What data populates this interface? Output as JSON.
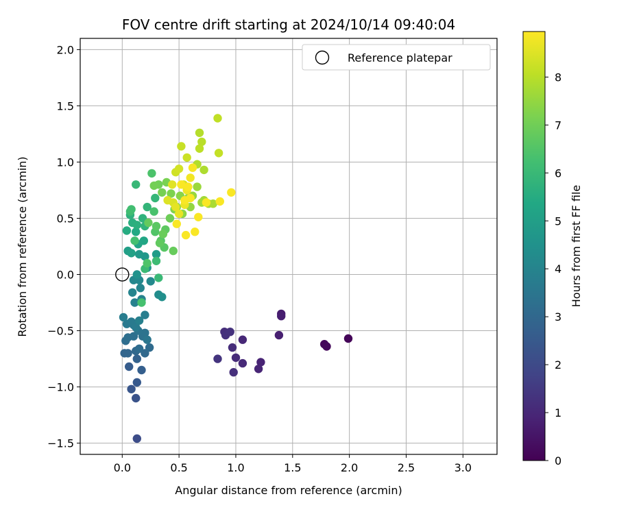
{
  "chart_data": {
    "type": "scatter",
    "title": "FOV centre drift starting at 2024/10/14 09:40:04",
    "xlabel": "Angular distance from reference (arcmin)",
    "ylabel": "Rotation from reference (arcmin)",
    "xlim": [
      -0.37,
      3.3
    ],
    "ylim": [
      -1.6,
      2.1
    ],
    "xticks": [
      0.0,
      0.5,
      1.0,
      1.5,
      2.0,
      2.5,
      3.0
    ],
    "xtick_labels": [
      "0.0",
      "0.5",
      "1.0",
      "1.5",
      "2.0",
      "2.5",
      "3.0"
    ],
    "yticks": [
      -1.5,
      -1.0,
      -0.5,
      0.0,
      0.5,
      1.0,
      1.5,
      2.0
    ],
    "ytick_labels": [
      "−1.5",
      "−1.0",
      "−0.5",
      "0.0",
      "0.5",
      "1.0",
      "1.5",
      "2.0"
    ],
    "grid": true,
    "legend": {
      "placement": "top-right",
      "entries": [
        "Reference platepar"
      ]
    },
    "reference_point": {
      "x": 0.0,
      "y": 0.0
    },
    "colorbar": {
      "label": "Hours from first FF file",
      "range": [
        0,
        8.95
      ],
      "ticks": [
        0,
        1,
        2,
        3,
        4,
        5,
        6,
        7,
        8
      ],
      "tick_labels": [
        "0",
        "1",
        "2",
        "3",
        "4",
        "5",
        "6",
        "7",
        "8"
      ],
      "colormap": "viridis"
    },
    "points": [
      [
        1.99,
        -0.57,
        0.1
      ],
      [
        1.78,
        -0.62,
        0.15
      ],
      [
        1.8,
        -0.64,
        0.2
      ],
      [
        1.4,
        -0.35,
        0.7
      ],
      [
        1.4,
        -0.37,
        0.75
      ],
      [
        1.38,
        -0.54,
        0.8
      ],
      [
        1.22,
        -0.78,
        0.9
      ],
      [
        1.2,
        -0.84,
        0.95
      ],
      [
        1.06,
        -0.58,
        1.0
      ],
      [
        1.06,
        -0.79,
        1.05
      ],
      [
        1.0,
        -0.74,
        1.1
      ],
      [
        0.97,
        -0.65,
        1.15
      ],
      [
        0.98,
        -0.87,
        1.2
      ],
      [
        0.9,
        -0.51,
        1.2
      ],
      [
        0.91,
        -0.54,
        1.25
      ],
      [
        0.95,
        -0.51,
        1.3
      ],
      [
        0.84,
        -0.75,
        1.35
      ],
      [
        0.13,
        -1.46,
        2.1
      ],
      [
        0.12,
        -1.1,
        2.3
      ],
      [
        0.08,
        -1.02,
        2.4
      ],
      [
        0.13,
        -0.96,
        2.5
      ],
      [
        0.06,
        -0.82,
        2.6
      ],
      [
        0.17,
        -0.85,
        2.7
      ],
      [
        0.13,
        -0.75,
        2.8
      ],
      [
        0.02,
        -0.7,
        2.9
      ],
      [
        0.05,
        -0.7,
        2.95
      ],
      [
        0.12,
        -0.68,
        3.0
      ],
      [
        0.2,
        -0.7,
        3.05
      ],
      [
        0.24,
        -0.65,
        3.1
      ],
      [
        0.15,
        -0.66,
        3.15
      ],
      [
        0.03,
        -0.59,
        3.2
      ],
      [
        0.05,
        -0.56,
        3.25
      ],
      [
        0.1,
        -0.55,
        3.3
      ],
      [
        0.18,
        -0.55,
        3.35
      ],
      [
        0.2,
        -0.52,
        3.4
      ],
      [
        0.14,
        -0.5,
        3.45
      ],
      [
        0.22,
        -0.58,
        3.5
      ],
      [
        0.1,
        -0.45,
        3.55
      ],
      [
        0.04,
        -0.44,
        3.6
      ],
      [
        0.08,
        -0.42,
        3.65
      ],
      [
        0.12,
        -0.47,
        3.7
      ],
      [
        0.01,
        -0.38,
        3.75
      ],
      [
        0.2,
        -0.36,
        3.8
      ],
      [
        0.15,
        -0.41,
        3.85
      ],
      [
        0.11,
        -0.25,
        3.9
      ],
      [
        0.17,
        -0.22,
        3.95
      ],
      [
        0.09,
        -0.16,
        4.0
      ],
      [
        0.16,
        -0.12,
        4.05
      ],
      [
        0.1,
        -0.05,
        4.1
      ],
      [
        0.15,
        -0.05,
        4.15
      ],
      [
        0.25,
        -0.06,
        4.2
      ],
      [
        0.32,
        -0.18,
        4.3
      ],
      [
        0.35,
        -0.2,
        4.4
      ],
      [
        0.13,
        0.0,
        4.5
      ],
      [
        0.22,
        0.06,
        4.6
      ],
      [
        0.2,
        0.16,
        4.7
      ],
      [
        0.15,
        0.18,
        4.8
      ],
      [
        0.3,
        0.18,
        4.9
      ],
      [
        0.05,
        0.21,
        5.0
      ],
      [
        0.08,
        0.19,
        5.1
      ],
      [
        0.14,
        0.27,
        5.2
      ],
      [
        0.19,
        0.3,
        5.3
      ],
      [
        0.12,
        0.38,
        5.4
      ],
      [
        0.04,
        0.39,
        5.5
      ],
      [
        0.09,
        0.46,
        5.6
      ],
      [
        0.13,
        0.44,
        5.65
      ],
      [
        0.07,
        0.53,
        5.7
      ],
      [
        0.18,
        0.5,
        5.75
      ],
      [
        0.2,
        0.43,
        5.8
      ],
      [
        0.22,
        0.6,
        5.85
      ],
      [
        0.29,
        0.68,
        5.9
      ],
      [
        0.12,
        0.8,
        5.95
      ],
      [
        0.32,
        -0.03,
        6.0
      ],
      [
        0.2,
        0.05,
        6.05
      ],
      [
        0.3,
        0.12,
        6.1
      ],
      [
        0.07,
        0.56,
        6.15
      ],
      [
        0.08,
        0.58,
        6.2
      ],
      [
        0.11,
        0.3,
        6.25
      ],
      [
        0.17,
        -0.25,
        6.3
      ],
      [
        0.28,
        0.56,
        6.35
      ],
      [
        0.26,
        0.9,
        6.4
      ],
      [
        0.22,
        0.1,
        6.45
      ],
      [
        0.29,
        0.38,
        6.5
      ],
      [
        0.34,
        0.3,
        6.55
      ],
      [
        0.37,
        0.24,
        6.6
      ],
      [
        0.3,
        0.43,
        6.65
      ],
      [
        0.38,
        0.4,
        6.7
      ],
      [
        0.33,
        0.28,
        6.75
      ],
      [
        0.23,
        0.46,
        6.8
      ],
      [
        0.45,
        0.21,
        6.85
      ],
      [
        0.36,
        0.36,
        6.9
      ],
      [
        0.42,
        0.5,
        6.95
      ],
      [
        0.32,
        0.8,
        7.0
      ],
      [
        0.28,
        0.79,
        7.05
      ],
      [
        0.35,
        0.73,
        7.1
      ],
      [
        0.39,
        0.82,
        7.15
      ],
      [
        0.43,
        0.72,
        7.2
      ],
      [
        0.46,
        0.58,
        7.25
      ],
      [
        0.48,
        0.6,
        7.3
      ],
      [
        0.51,
        0.7,
        7.35
      ],
      [
        0.53,
        0.54,
        7.4
      ],
      [
        0.58,
        0.68,
        7.45
      ],
      [
        0.6,
        0.6,
        7.5
      ],
      [
        0.62,
        0.7,
        7.55
      ],
      [
        0.66,
        0.78,
        7.6
      ],
      [
        0.7,
        0.64,
        7.65
      ],
      [
        0.72,
        0.66,
        7.7
      ],
      [
        0.76,
        0.63,
        7.75
      ],
      [
        0.8,
        0.63,
        7.8
      ],
      [
        0.72,
        0.93,
        7.85
      ],
      [
        0.66,
        0.98,
        7.9
      ],
      [
        0.68,
        1.26,
        7.95
      ],
      [
        0.7,
        1.18,
        8.0
      ],
      [
        0.68,
        1.12,
        8.05
      ],
      [
        0.84,
        1.39,
        8.1
      ],
      [
        0.85,
        1.08,
        8.15
      ],
      [
        0.52,
        1.14,
        8.2
      ],
      [
        0.57,
        1.04,
        8.25
      ],
      [
        0.47,
        0.91,
        8.3
      ],
      [
        0.5,
        0.94,
        8.35
      ],
      [
        0.54,
        0.8,
        8.4
      ],
      [
        0.45,
        0.64,
        8.45
      ],
      [
        0.4,
        0.66,
        8.5
      ],
      [
        0.44,
        0.8,
        8.55
      ],
      [
        0.47,
        0.6,
        8.6
      ],
      [
        0.5,
        0.54,
        8.65
      ],
      [
        0.55,
        0.62,
        8.7
      ],
      [
        0.57,
        0.75,
        8.75
      ],
      [
        0.6,
        0.86,
        8.8
      ],
      [
        0.62,
        0.95,
        8.85
      ],
      [
        0.56,
        0.35,
        8.9
      ],
      [
        0.64,
        0.38,
        8.9
      ],
      [
        0.67,
        0.51,
        8.9
      ],
      [
        0.74,
        0.64,
        8.9
      ],
      [
        0.58,
        0.78,
        8.9
      ],
      [
        0.6,
        0.68,
        8.9
      ],
      [
        0.52,
        0.8,
        8.9
      ],
      [
        0.48,
        0.45,
        8.9
      ],
      [
        0.96,
        0.73,
        8.9
      ],
      [
        0.86,
        0.65,
        8.9
      ],
      [
        0.55,
        0.66,
        8.9
      ]
    ]
  }
}
